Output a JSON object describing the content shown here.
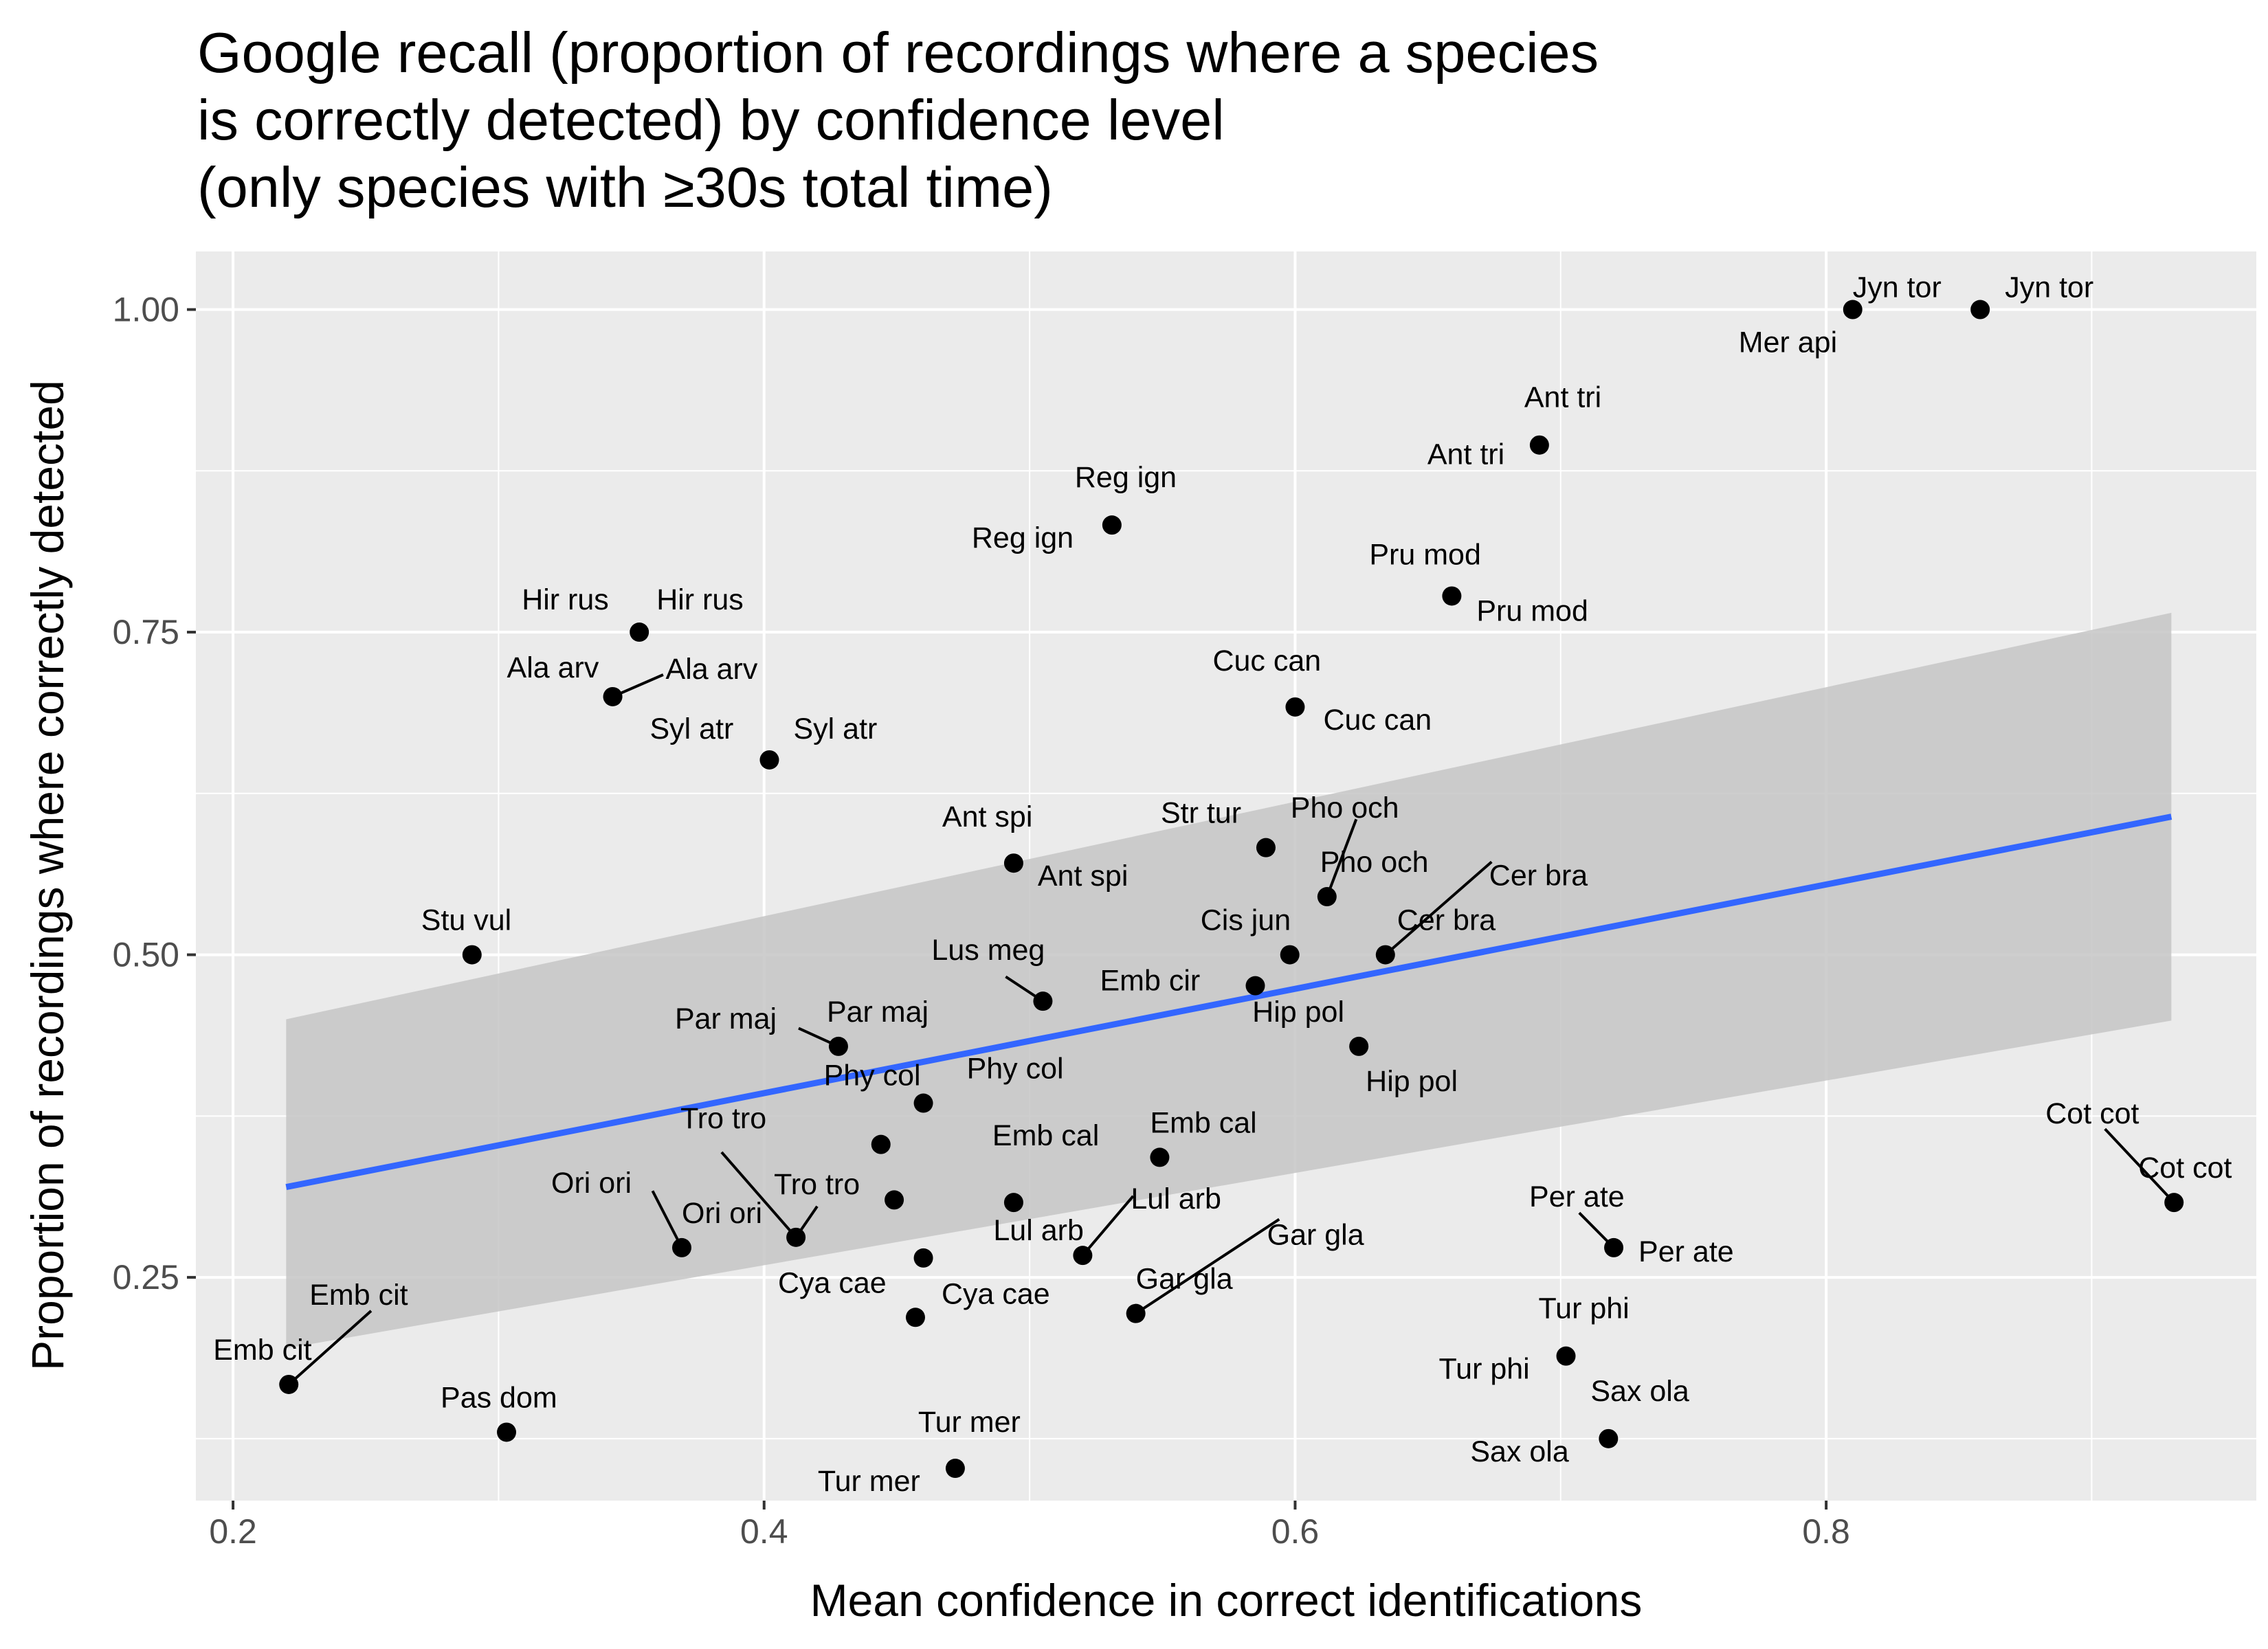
{
  "chart_data": {
    "type": "scatter",
    "title_lines": [
      "Google recall (proportion of recordings where a species",
      "is correctly detected) by confidence level",
      "(only species with ≥30s total time)"
    ],
    "xlabel": "Mean confidence in correct identifications",
    "ylabel": "Proportion of recordings where correctly detected",
    "xlim": [
      0.186,
      0.962
    ],
    "ylim": [
      0.077,
      1.045
    ],
    "x_ticks": [
      {
        "value": 0.2,
        "label": "0.2"
      },
      {
        "value": 0.4,
        "label": "0.4"
      },
      {
        "value": 0.6,
        "label": "0.6"
      },
      {
        "value": 0.8,
        "label": "0.8"
      }
    ],
    "x_minor_ticks": [
      0.3,
      0.5,
      0.7,
      0.9
    ],
    "y_ticks": [
      {
        "value": 0.25,
        "label": "0.25"
      },
      {
        "value": 0.5,
        "label": "0.50"
      },
      {
        "value": 0.75,
        "label": "0.75"
      },
      {
        "value": 1.0,
        "label": "1.00"
      }
    ],
    "y_minor_ticks": [
      0.125,
      0.375,
      0.625,
      0.875
    ],
    "grid": true,
    "colors": {
      "panel": "#ebebeb",
      "grid": "#ffffff",
      "point": "#000000",
      "trend": "#3366ff",
      "ribbon": "#c6c6c6",
      "text": "#000000",
      "tick_text": "#4d4d4d"
    },
    "trend": {
      "x": [
        0.22,
        0.93
      ],
      "y": [
        0.32,
        0.607
      ]
    },
    "confidence_band": {
      "x": [
        0.22,
        0.93
      ],
      "upper": [
        0.45,
        0.765
      ],
      "lower": [
        0.195,
        0.449
      ]
    },
    "points": [
      {
        "x": 0.81,
        "y": 1.0
      },
      {
        "x": 0.858,
        "y": 1.0
      },
      {
        "x": 0.692,
        "y": 0.895
      },
      {
        "x": 0.531,
        "y": 0.833
      },
      {
        "x": 0.659,
        "y": 0.778
      },
      {
        "x": 0.353,
        "y": 0.75
      },
      {
        "x": 0.343,
        "y": 0.7
      },
      {
        "x": 0.6,
        "y": 0.692
      },
      {
        "x": 0.402,
        "y": 0.651
      },
      {
        "x": 0.589,
        "y": 0.583
      },
      {
        "x": 0.494,
        "y": 0.571
      },
      {
        "x": 0.612,
        "y": 0.545
      },
      {
        "x": 0.29,
        "y": 0.5
      },
      {
        "x": 0.598,
        "y": 0.5
      },
      {
        "x": 0.634,
        "y": 0.5
      },
      {
        "x": 0.585,
        "y": 0.476
      },
      {
        "x": 0.505,
        "y": 0.464
      },
      {
        "x": 0.428,
        "y": 0.429
      },
      {
        "x": 0.624,
        "y": 0.429
      },
      {
        "x": 0.46,
        "y": 0.385
      },
      {
        "x": 0.444,
        "y": 0.353
      },
      {
        "x": 0.549,
        "y": 0.343
      },
      {
        "x": 0.449,
        "y": 0.31
      },
      {
        "x": 0.494,
        "y": 0.308
      },
      {
        "x": 0.412,
        "y": 0.281
      },
      {
        "x": 0.369,
        "y": 0.273
      },
      {
        "x": 0.72,
        "y": 0.273
      },
      {
        "x": 0.52,
        "y": 0.267
      },
      {
        "x": 0.46,
        "y": 0.265
      },
      {
        "x": 0.931,
        "y": 0.308
      },
      {
        "x": 0.54,
        "y": 0.222
      },
      {
        "x": 0.457,
        "y": 0.219
      },
      {
        "x": 0.702,
        "y": 0.189
      },
      {
        "x": 0.221,
        "y": 0.167
      },
      {
        "x": 0.303,
        "y": 0.13
      },
      {
        "x": 0.718,
        "y": 0.125
      },
      {
        "x": 0.472,
        "y": 0.102
      }
    ],
    "annotations": [
      {
        "text": "Jyn tor",
        "x": 0.81,
        "y": 1.0,
        "dx": 0,
        "dy": -18,
        "anchor": "start"
      },
      {
        "text": "Jyn tor",
        "x": 0.858,
        "y": 1.0,
        "dx": 36,
        "dy": -18,
        "anchor": "start"
      },
      {
        "text": "Mer api",
        "x": 0.81,
        "y": 1.0,
        "dx": -166,
        "dy": 62,
        "anchor": "start"
      },
      {
        "text": "Ant tri",
        "x": 0.692,
        "y": 0.895,
        "dx": -22,
        "dy": -55,
        "anchor": "start"
      },
      {
        "text": "Ant tri",
        "x": 0.692,
        "y": 0.895,
        "dx": -163,
        "dy": 28,
        "anchor": "start"
      },
      {
        "text": "Reg ign",
        "x": 0.531,
        "y": 0.833,
        "dx": -54,
        "dy": -55,
        "anchor": "start"
      },
      {
        "text": "Reg ign",
        "x": 0.531,
        "y": 0.833,
        "dx": -204,
        "dy": 33,
        "anchor": "start"
      },
      {
        "text": "Pru mod",
        "x": 0.659,
        "y": 0.778,
        "dx": -120,
        "dy": -46,
        "anchor": "start"
      },
      {
        "text": "Pru mod",
        "x": 0.659,
        "y": 0.778,
        "dx": 36,
        "dy": 36,
        "anchor": "start"
      },
      {
        "text": "Hir rus",
        "x": 0.353,
        "y": 0.75,
        "dx": -171,
        "dy": -33,
        "anchor": "start"
      },
      {
        "text": "Hir rus",
        "x": 0.353,
        "y": 0.75,
        "dx": 25,
        "dy": -33,
        "anchor": "start"
      },
      {
        "text": "Ala arv",
        "x": 0.343,
        "y": 0.7,
        "dx": -154,
        "dy": -28,
        "anchor": "start"
      },
      {
        "text": "Ala arv",
        "x": 0.343,
        "y": 0.7,
        "dx": 77,
        "dy": -26,
        "anchor": "start"
      },
      {
        "text": "Cuc can",
        "x": 0.6,
        "y": 0.692,
        "dx": -120,
        "dy": -53,
        "anchor": "start"
      },
      {
        "text": "Cuc can",
        "x": 0.6,
        "y": 0.692,
        "dx": 41,
        "dy": 33,
        "anchor": "start"
      },
      {
        "text": "Syl atr",
        "x": 0.402,
        "y": 0.651,
        "dx": -174,
        "dy": -31,
        "anchor": "start"
      },
      {
        "text": "Syl atr",
        "x": 0.402,
        "y": 0.651,
        "dx": 35,
        "dy": -31,
        "anchor": "start"
      },
      {
        "text": "Str tur",
        "x": 0.589,
        "y": 0.583,
        "dx": -153,
        "dy": -36,
        "anchor": "start"
      },
      {
        "text": "Pho och",
        "x": 0.612,
        "y": 0.545,
        "dx": -53,
        "dy": -115,
        "anchor": "start"
      },
      {
        "text": "Pho och",
        "x": 0.612,
        "y": 0.545,
        "dx": -10,
        "dy": -36,
        "anchor": "start"
      },
      {
        "text": "Ant spi",
        "x": 0.494,
        "y": 0.571,
        "dx": -104,
        "dy": -53,
        "anchor": "start"
      },
      {
        "text": "Ant spi",
        "x": 0.494,
        "y": 0.571,
        "dx": 35,
        "dy": 33,
        "anchor": "start"
      },
      {
        "text": "Cer bra",
        "x": 0.634,
        "y": 0.5,
        "dx": 151,
        "dy": -101,
        "anchor": "start"
      },
      {
        "text": "Cer bra",
        "x": 0.634,
        "y": 0.5,
        "dx": 17,
        "dy": -36,
        "anchor": "start"
      },
      {
        "text": "Cis jun",
        "x": 0.598,
        "y": 0.5,
        "dx": -130,
        "dy": -36,
        "anchor": "start"
      },
      {
        "text": "Stu vul",
        "x": 0.29,
        "y": 0.5,
        "dx": -74,
        "dy": -36,
        "anchor": "start"
      },
      {
        "text": "Lus meg",
        "x": 0.505,
        "y": 0.464,
        "dx": -162,
        "dy": -60,
        "anchor": "start"
      },
      {
        "text": "Emb cir",
        "x": 0.585,
        "y": 0.476,
        "dx": -226,
        "dy": 7,
        "anchor": "start"
      },
      {
        "text": "Hip pol",
        "x": 0.624,
        "y": 0.429,
        "dx": -155,
        "dy": -36,
        "anchor": "start"
      },
      {
        "text": "Hip pol",
        "x": 0.624,
        "y": 0.429,
        "dx": 10,
        "dy": 65,
        "anchor": "start"
      },
      {
        "text": "Par maj",
        "x": 0.428,
        "y": 0.429,
        "dx": -238,
        "dy": -26,
        "anchor": "start"
      },
      {
        "text": "Par maj",
        "x": 0.428,
        "y": 0.429,
        "dx": -17,
        "dy": -36,
        "anchor": "start"
      },
      {
        "text": "Phy col",
        "x": 0.46,
        "y": 0.385,
        "dx": -145,
        "dy": -26,
        "anchor": "start"
      },
      {
        "text": "Phy col",
        "x": 0.46,
        "y": 0.385,
        "dx": 63,
        "dy": -36,
        "anchor": "start"
      },
      {
        "text": "Tro tro",
        "x": 0.412,
        "y": 0.281,
        "dx": -168,
        "dy": -159,
        "anchor": "start"
      },
      {
        "text": "Tro tro",
        "x": 0.412,
        "y": 0.281,
        "dx": -32,
        "dy": -63,
        "anchor": "start"
      },
      {
        "text": "Emb cal",
        "x": 0.494,
        "y": 0.308,
        "dx": -31,
        "dy": -83,
        "anchor": "start"
      },
      {
        "text": "Emb cal",
        "x": 0.549,
        "y": 0.343,
        "dx": -14,
        "dy": -36,
        "anchor": "start"
      },
      {
        "text": "Ori ori",
        "x": 0.369,
        "y": 0.273,
        "dx": -190,
        "dy": -80,
        "anchor": "start"
      },
      {
        "text": "Ori ori",
        "x": 0.369,
        "y": 0.273,
        "dx": 0,
        "dy": -36,
        "anchor": "start"
      },
      {
        "text": "Lul arb",
        "x": 0.52,
        "y": 0.267,
        "dx": 70,
        "dy": -68,
        "anchor": "start"
      },
      {
        "text": "Lul arb",
        "x": 0.52,
        "y": 0.267,
        "dx": -130,
        "dy": -22,
        "anchor": "start"
      },
      {
        "text": "Gar gla",
        "x": 0.54,
        "y": 0.222,
        "dx": 191,
        "dy": -100,
        "anchor": "start"
      },
      {
        "text": "Gar gla",
        "x": 0.54,
        "y": 0.222,
        "dx": 0,
        "dy": -36,
        "anchor": "start"
      },
      {
        "text": "Per ate",
        "x": 0.72,
        "y": 0.273,
        "dx": -123,
        "dy": -60,
        "anchor": "start"
      },
      {
        "text": "Per ate",
        "x": 0.72,
        "y": 0.273,
        "dx": 36,
        "dy": 20,
        "anchor": "start"
      },
      {
        "text": "Cot cot",
        "x": 0.931,
        "y": 0.308,
        "dx": -187,
        "dy": -115,
        "anchor": "start"
      },
      {
        "text": "Cot cot",
        "x": 0.931,
        "y": 0.308,
        "dx": -52,
        "dy": -36,
        "anchor": "start"
      },
      {
        "text": "Cya cae",
        "x": 0.457,
        "y": 0.219,
        "dx": -200,
        "dy": -36,
        "anchor": "start"
      },
      {
        "text": "Cya cae",
        "x": 0.457,
        "y": 0.219,
        "dx": 38,
        "dy": -20,
        "anchor": "start"
      },
      {
        "text": "Tur phi",
        "x": 0.702,
        "y": 0.189,
        "dx": -40,
        "dy": -55,
        "anchor": "start"
      },
      {
        "text": "Tur phi",
        "x": 0.702,
        "y": 0.189,
        "dx": -185,
        "dy": 33,
        "anchor": "start"
      },
      {
        "text": "Sax ola",
        "x": 0.718,
        "y": 0.125,
        "dx": -26,
        "dy": -55,
        "anchor": "start"
      },
      {
        "text": "Sax ola",
        "x": 0.718,
        "y": 0.125,
        "dx": -201,
        "dy": 33,
        "anchor": "start"
      },
      {
        "text": "Emb cit",
        "x": 0.221,
        "y": 0.167,
        "dx": 30,
        "dy": -116,
        "anchor": "start"
      },
      {
        "text": "Emb cit",
        "x": 0.221,
        "y": 0.167,
        "dx": -110,
        "dy": -36,
        "anchor": "start"
      },
      {
        "text": "Pas dom",
        "x": 0.303,
        "y": 0.13,
        "dx": -96,
        "dy": -36,
        "anchor": "start"
      },
      {
        "text": "Tur mer",
        "x": 0.472,
        "y": 0.102,
        "dx": -54,
        "dy": -53,
        "anchor": "start"
      },
      {
        "text": "Tur mer",
        "x": 0.472,
        "y": 0.102,
        "dx": -200,
        "dy": 33,
        "anchor": "start"
      }
    ],
    "leader_lines": [
      {
        "from": [
          0.343,
          0.7
        ],
        "to": [
          0.362,
          0.717
        ]
      },
      {
        "from": [
          0.612,
          0.545
        ],
        "to": [
          0.623,
          0.605
        ]
      },
      {
        "from": [
          0.634,
          0.5
        ],
        "to": [
          0.674,
          0.572
        ]
      },
      {
        "from": [
          0.505,
          0.464
        ],
        "to": [
          0.491,
          0.483
        ]
      },
      {
        "from": [
          0.428,
          0.429
        ],
        "to": [
          0.413,
          0.443
        ]
      },
      {
        "from": [
          0.412,
          0.281
        ],
        "to": [
          0.384,
          0.347
        ]
      },
      {
        "from": [
          0.412,
          0.281
        ],
        "to": [
          0.42,
          0.305
        ]
      },
      {
        "from": [
          0.369,
          0.273
        ],
        "to": [
          0.358,
          0.317
        ]
      },
      {
        "from": [
          0.52,
          0.267
        ],
        "to": [
          0.539,
          0.313
        ]
      },
      {
        "from": [
          0.54,
          0.222
        ],
        "to": [
          0.594,
          0.295
        ]
      },
      {
        "from": [
          0.72,
          0.273
        ],
        "to": [
          0.707,
          0.3
        ]
      },
      {
        "from": [
          0.931,
          0.308
        ],
        "to": [
          0.905,
          0.365
        ]
      },
      {
        "from": [
          0.221,
          0.167
        ],
        "to": [
          0.252,
          0.224
        ]
      }
    ]
  }
}
